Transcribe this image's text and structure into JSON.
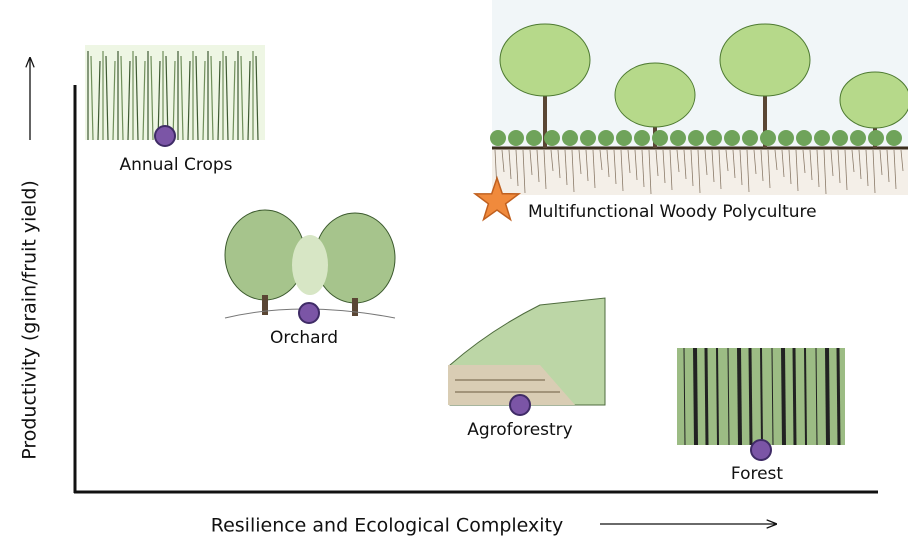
{
  "axes": {
    "y_label": "Productivity (grain/fruit yield)",
    "x_label": "Resilience and Ecological Complexity"
  },
  "nodes": [
    {
      "label": "Annual Crops"
    },
    {
      "label": "Orchard"
    },
    {
      "label": "Agroforestry"
    },
    {
      "label": "Forest"
    },
    {
      "label": "Multifunctional Woody Polyculture"
    }
  ]
}
